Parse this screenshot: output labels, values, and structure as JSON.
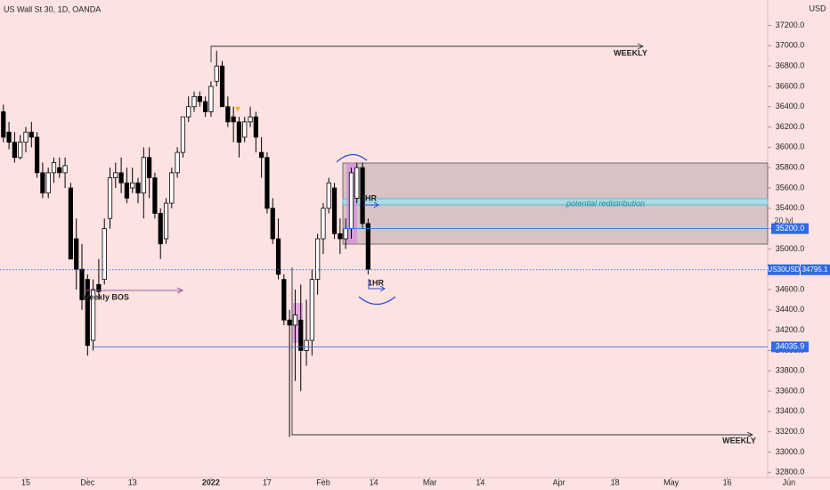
{
  "chart_data": {
    "type": "candlestick",
    "title": "US Wall St 30, 1D, OANDA",
    "currency": "USD",
    "x": [
      0,
      1,
      2,
      3,
      4,
      5,
      6,
      7,
      8,
      9,
      10,
      11,
      12,
      13,
      14,
      15,
      16,
      17,
      18,
      19,
      20,
      21,
      22,
      23,
      24,
      25,
      26,
      27,
      28,
      29,
      30,
      31,
      32,
      33,
      34,
      35,
      36,
      37,
      38,
      39,
      40,
      41,
      42,
      43,
      44,
      45,
      46,
      47,
      48,
      49,
      50,
      51,
      52,
      53,
      54,
      55,
      56,
      57,
      58,
      59,
      60,
      61,
      62,
      63,
      64,
      65
    ],
    "open": [
      36350,
      36150,
      36050,
      35900,
      36050,
      36150,
      36100,
      35750,
      35550,
      35750,
      35800,
      35750,
      35600,
      35100,
      34800,
      34700,
      34100,
      34650,
      34700,
      35300,
      35700,
      35750,
      35650,
      35600,
      35650,
      35550,
      35900,
      35700,
      35350,
      35100,
      35450,
      35750,
      35950,
      36300,
      36400,
      36500,
      36450,
      36350,
      36650,
      36800,
      36400,
      36300,
      36250,
      36100,
      36250,
      36300,
      35950,
      35900,
      35400,
      35100,
      34700,
      34300,
      34250,
      34300,
      34000,
      34100,
      34700,
      35100,
      35400,
      35600,
      35150,
      35100,
      35200,
      35500,
      35800,
      35250
    ],
    "high": [
      36420,
      36250,
      36150,
      36120,
      36200,
      36250,
      36150,
      35850,
      35800,
      35900,
      35900,
      35900,
      35650,
      35300,
      35050,
      34750,
      34700,
      34900,
      35300,
      35800,
      35850,
      35900,
      35800,
      35800,
      35700,
      36000,
      36000,
      35750,
      35400,
      35500,
      35800,
      36000,
      36300,
      36500,
      36550,
      36550,
      36500,
      36650,
      36950,
      36850,
      36500,
      36400,
      36300,
      36300,
      36400,
      36350,
      36100,
      35950,
      35500,
      35300,
      34750,
      34400,
      34600,
      34650,
      34500,
      34800,
      35150,
      35450,
      35700,
      35650,
      35300,
      35300,
      35800,
      35850,
      35850,
      35300
    ],
    "low": [
      36050,
      35980,
      35850,
      35880,
      35950,
      36000,
      35700,
      35500,
      35500,
      35650,
      35700,
      35600,
      34900,
      34600,
      34400,
      33950,
      34000,
      34500,
      34650,
      35200,
      35600,
      35550,
      35450,
      35550,
      35450,
      35300,
      35500,
      35300,
      34900,
      35050,
      35400,
      35700,
      35900,
      36250,
      36350,
      36400,
      36300,
      36300,
      36600,
      36400,
      36200,
      36050,
      35900,
      36050,
      36200,
      35950,
      35700,
      35350,
      35050,
      34700,
      34250,
      33150,
      33700,
      33600,
      33850,
      33950,
      34550,
      34950,
      35350,
      35100,
      34950,
      35000,
      35100,
      35450,
      35200,
      34750
    ],
    "close": [
      36100,
      36050,
      35900,
      36050,
      36150,
      36100,
      35750,
      35550,
      35750,
      35850,
      35750,
      35820,
      34900,
      34800,
      34500,
      34050,
      34600,
      34580,
      35200,
      35700,
      35750,
      35650,
      35500,
      35650,
      35550,
      35900,
      35700,
      35350,
      35050,
      35450,
      35750,
      35950,
      36300,
      36400,
      36500,
      36450,
      36350,
      36600,
      36800,
      36400,
      36250,
      36250,
      36050,
      36250,
      36300,
      36100,
      35900,
      35400,
      35100,
      34750,
      34300,
      34250,
      34350,
      34000,
      34100,
      34700,
      35100,
      35400,
      35650,
      35150,
      35100,
      35200,
      35750,
      35800,
      35250,
      34800
    ],
    "xlim": [
      -0.6,
      136.2
    ],
    "xticks": [
      {
        "value": 4,
        "label": "15"
      },
      {
        "value": 15,
        "label": "Dec"
      },
      {
        "value": 23,
        "label": "13"
      },
      {
        "value": 37,
        "label": "2022"
      },
      {
        "value": 47,
        "label": "17"
      },
      {
        "value": 57,
        "label": "Feb"
      },
      {
        "value": 66,
        "label": "14"
      },
      {
        "value": 76,
        "label": "Mar"
      },
      {
        "value": 85,
        "label": "14"
      },
      {
        "value": 99,
        "label": "Apr"
      },
      {
        "value": 109,
        "label": "18"
      },
      {
        "value": 119,
        "label": "May"
      },
      {
        "value": 129,
        "label": "16"
      },
      {
        "value": 140,
        "label": "Jun"
      }
    ],
    "ylim": [
      32750,
      37450
    ],
    "yticks": [
      {
        "value": 32800,
        "label": "32800.0"
      },
      {
        "value": 33000,
        "label": "33000.0"
      },
      {
        "value": 33200,
        "label": "33200.0"
      },
      {
        "value": 33400,
        "label": "33400.0"
      },
      {
        "value": 33600,
        "label": "33600.0"
      },
      {
        "value": 33800,
        "label": "33800.0"
      },
      {
        "value": 34000,
        "label": "34000.0"
      },
      {
        "value": 34200,
        "label": "34200.0"
      },
      {
        "value": 34400,
        "label": "34400.0"
      },
      {
        "value": 34600,
        "label": "34600.0"
      },
      {
        "value": 34800,
        "label": "34800.0"
      },
      {
        "value": 35000,
        "label": "35000.0"
      },
      {
        "value": 35200,
        "label": "35200.0"
      },
      {
        "value": 35400,
        "label": "35400.0"
      },
      {
        "value": 35600,
        "label": "35600.0"
      },
      {
        "value": 35800,
        "label": "35800.0"
      },
      {
        "value": 36000,
        "label": "36000.0"
      },
      {
        "value": 36200,
        "label": "36200.0"
      },
      {
        "value": 36400,
        "label": "36400.0"
      },
      {
        "value": 36600,
        "label": "36600.0"
      },
      {
        "value": 36800,
        "label": "36800.0"
      },
      {
        "value": 37000,
        "label": "37000.0"
      },
      {
        "value": 37200,
        "label": "37200.0"
      }
    ],
    "up_color": "#ffffff",
    "down_color": "#000000",
    "levels": [
      {
        "value": 35200,
        "label": "35200.0"
      },
      {
        "value": 34035.9,
        "label": "34035.9"
      }
    ],
    "last_price": {
      "symbol": "US30USD",
      "value": 34795.1,
      "label": "34795.1"
    },
    "annotations": [
      "WEEKLY",
      "WEEKLY",
      "1HR",
      "1HR",
      "potential redistribution",
      "20 lvl",
      "Weekly BOS"
    ]
  }
}
